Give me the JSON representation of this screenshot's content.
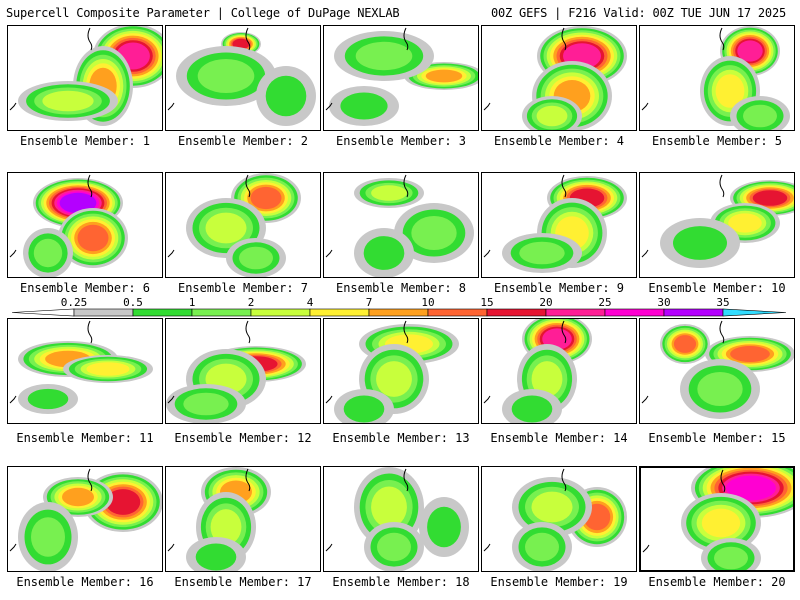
{
  "header": {
    "title_left": "Supercell Composite Parameter | College of DuPage NEXLAB",
    "title_right": "00Z GEFS | F216 Valid: 00Z TUE JUN 17 2025"
  },
  "legend": {
    "levels": [
      "0.25",
      "0.5",
      "1",
      "2",
      "4",
      "7",
      "10",
      "15",
      "20",
      "25",
      "30",
      "35"
    ],
    "colors": [
      "#c8c8c8",
      "#32dc32",
      "#78f050",
      "#c8ff3c",
      "#fff032",
      "#ffa01e",
      "#ff6432",
      "#e61432",
      "#ff1e96",
      "#ff00d2",
      "#b400ff",
      "#c878f0",
      "#32dcff"
    ]
  },
  "panels": [
    {
      "label": "Ensemble Member: 1"
    },
    {
      "label": "Ensemble Member: 2"
    },
    {
      "label": "Ensemble Member: 3"
    },
    {
      "label": "Ensemble Member: 4"
    },
    {
      "label": "Ensemble Member: 5"
    },
    {
      "label": "Ensemble Member: 6"
    },
    {
      "label": "Ensemble Member: 7"
    },
    {
      "label": "Ensemble Member: 8"
    },
    {
      "label": "Ensemble Member: 9"
    },
    {
      "label": "Ensemble Member: 10"
    },
    {
      "label": "Ensemble Member: 11"
    },
    {
      "label": "Ensemble Member: 12"
    },
    {
      "label": "Ensemble Member: 13"
    },
    {
      "label": "Ensemble Member: 14"
    },
    {
      "label": "Ensemble Member: 15"
    },
    {
      "label": "Ensemble Member: 16"
    },
    {
      "label": "Ensemble Member: 17"
    },
    {
      "label": "Ensemble Member: 18"
    },
    {
      "label": "Ensemble Member: 19"
    },
    {
      "label": "Ensemble Member: 20"
    }
  ]
}
